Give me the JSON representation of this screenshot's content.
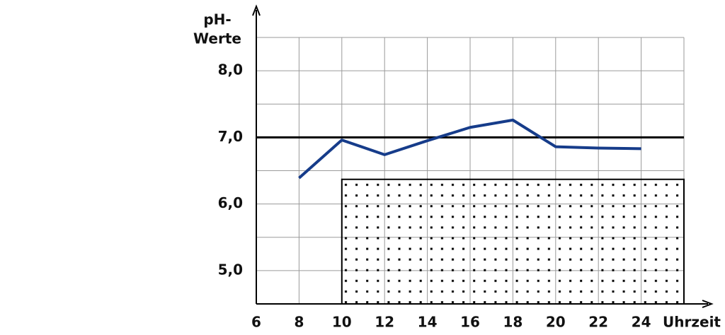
{
  "chart_data": {
    "type": "line",
    "ylabel": [
      "pH-",
      "Werte"
    ],
    "xlabel": "Uhrzeit",
    "x": [
      8,
      10,
      12,
      14,
      16,
      18,
      20,
      22,
      24
    ],
    "series": [
      {
        "color": "#163c8a",
        "values": [
          6.39,
          6.96,
          6.74,
          6.95,
          7.15,
          7.26,
          6.86,
          6.84,
          6.83
        ]
      }
    ],
    "xlim": [
      6,
      26
    ],
    "ylim": [
      4.5,
      8.5
    ],
    "xticks": [
      6,
      8,
      10,
      12,
      14,
      16,
      18,
      20,
      22,
      24
    ],
    "yticks": [
      {
        "value": 5,
        "label": "5,0"
      },
      {
        "value": 6,
        "label": "6,0"
      },
      {
        "value": 7,
        "label": "7,0"
      },
      {
        "value": 8,
        "label": "8,0"
      }
    ],
    "xgrid": [
      8,
      10,
      12,
      14,
      16,
      18,
      20,
      22,
      24,
      26
    ],
    "ygrid": [
      5,
      5.5,
      6,
      6.5,
      7,
      7.5,
      8,
      8.5
    ],
    "grid": true,
    "reference_line": 7,
    "shaded_region": {
      "x": [
        10,
        26
      ],
      "y": [
        4.5,
        6.37
      ]
    }
  }
}
